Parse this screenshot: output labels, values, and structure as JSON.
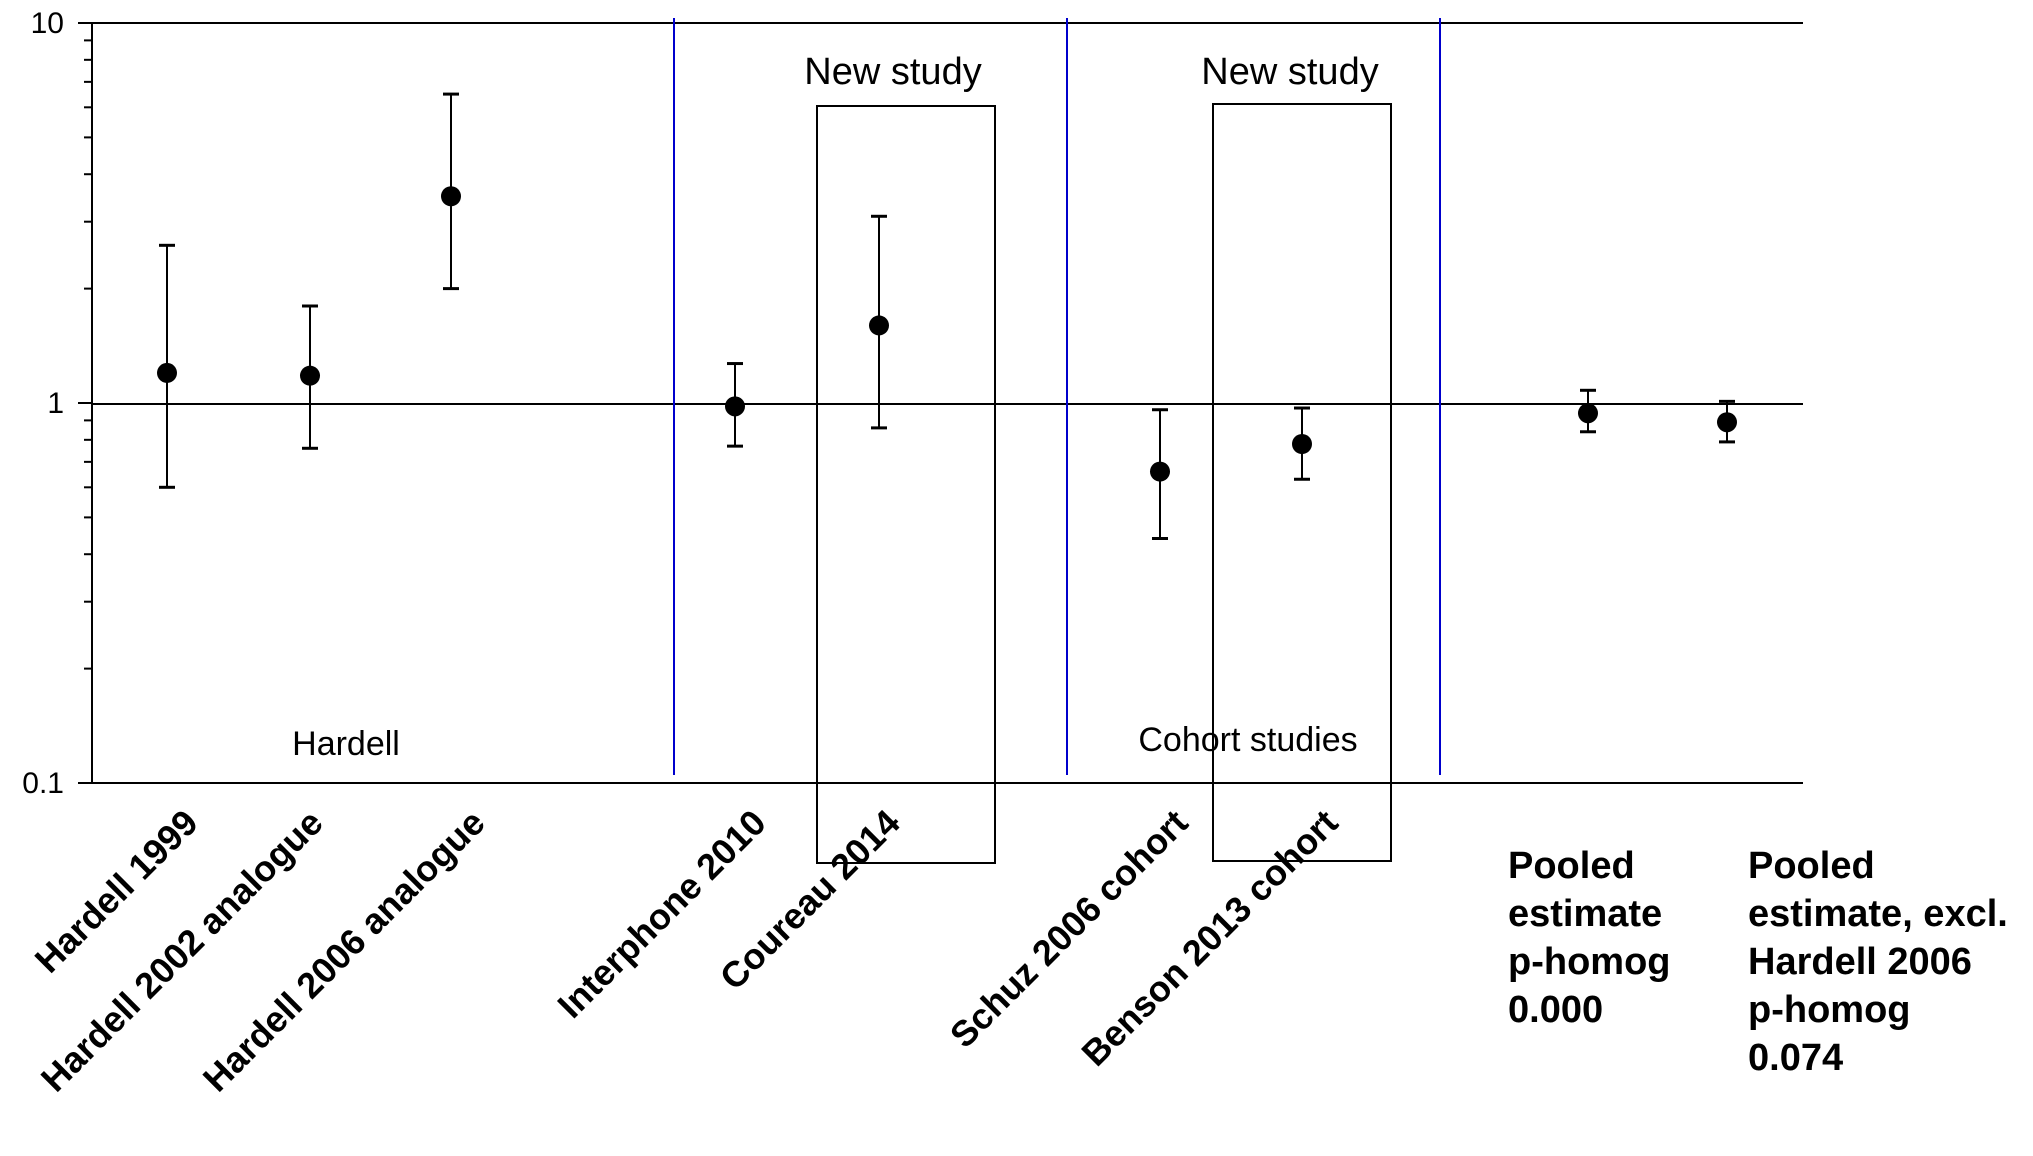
{
  "chart_data": {
    "type": "scatter",
    "yscale": "log",
    "ylim": [
      0.1,
      10
    ],
    "yticks": [
      "0.1",
      "1",
      "10"
    ],
    "reference_line": 1,
    "grid": false,
    "categories": [
      "Hardell 1999",
      "Hardell 2002 analogue",
      "Hardell 2006 analogue",
      "Interphone 2010",
      "Coureau 2014",
      "Schuz 2006 cohort",
      "Benson 2013 cohort"
    ],
    "estimates": [
      {
        "label": "Hardell 1999",
        "value": 1.2,
        "lower": 0.6,
        "upper": 2.6
      },
      {
        "label": "Hardell 2002 analogue",
        "value": 1.18,
        "lower": 0.76,
        "upper": 1.8
      },
      {
        "label": "Hardell 2006 analogue",
        "value": 3.5,
        "lower": 2.0,
        "upper": 6.5
      },
      {
        "label": "Interphone 2010",
        "value": 0.98,
        "lower": 0.77,
        "upper": 1.27
      },
      {
        "label": "Coureau 2014",
        "value": 1.6,
        "lower": 0.86,
        "upper": 3.1
      },
      {
        "label": "Schuz 2006 cohort",
        "value": 0.66,
        "lower": 0.44,
        "upper": 0.96
      },
      {
        "label": "Benson 2013 cohort",
        "value": 0.78,
        "lower": 0.63,
        "upper": 0.97
      },
      {
        "label": "Pooled estimate p-homog 0.000",
        "value": 0.94,
        "lower": 0.84,
        "upper": 1.08
      },
      {
        "label": "Pooled estimate, excl. Hardell 2006 p-homog 0.074",
        "value": 0.89,
        "lower": 0.79,
        "upper": 1.01
      }
    ],
    "pooled_labels": [
      [
        "Pooled",
        "estimate",
        "p-homog",
        "0.000"
      ],
      [
        "Pooled",
        "estimate, excl.",
        "Hardell 2006",
        "p-homog",
        "0.074"
      ]
    ],
    "group_labels": [
      "Hardell",
      "Cohort studies"
    ],
    "highlight_label": "New study",
    "highlighted_categories": [
      "Coureau 2014",
      "Benson 2013 cohort"
    ],
    "colors": {
      "separator": "#0000cc",
      "marks": "#000000"
    }
  }
}
